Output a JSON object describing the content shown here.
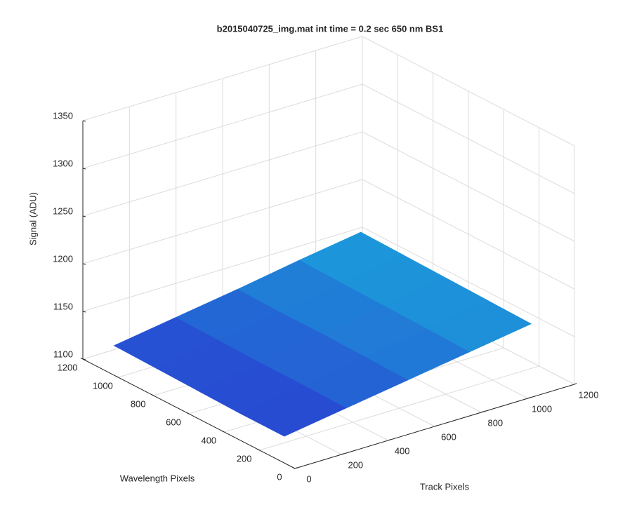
{
  "chart_data": {
    "type": "surface",
    "title": "b2015040725_img.mat int time = 0.2 sec  650 nm BS1",
    "xlabel": "Track Pixels",
    "ylabel": "Wavelength Pixels",
    "zlabel": "Signal (ADU)",
    "x": [
      0,
      265,
      530,
      795,
      1060
    ],
    "y": [
      60,
      301,
      542,
      783,
      1024
    ],
    "z": [
      [
        1128,
        1138,
        1148,
        1158,
        1168
      ],
      [
        1128,
        1139,
        1149,
        1159,
        1169
      ],
      [
        1129,
        1139,
        1150,
        1160,
        1170
      ],
      [
        1130,
        1140,
        1150,
        1161,
        1171
      ],
      [
        1131,
        1141,
        1151,
        1162,
        1172
      ]
    ],
    "xlim": [
      0,
      1200
    ],
    "ylim": [
      0,
      1200
    ],
    "zlim": [
      1100,
      1350
    ],
    "xticks": [
      0,
      200,
      400,
      600,
      800,
      1000,
      1200
    ],
    "yticks": [
      0,
      200,
      400,
      600,
      800,
      1000,
      1200
    ],
    "zticks": [
      1100,
      1150,
      1200,
      1250,
      1300,
      1350
    ],
    "clim": [
      1125,
      1175
    ],
    "colormap": [
      "#2a3ad0",
      "#1aa8dc"
    ],
    "grid": true
  }
}
